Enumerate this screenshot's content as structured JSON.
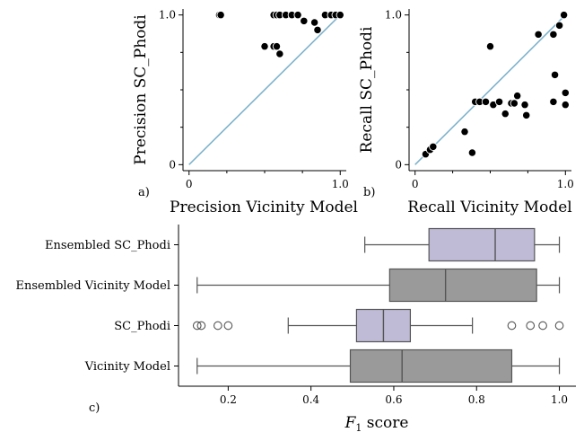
{
  "chart_data": [
    {
      "type": "scatter",
      "panel_label": "a)",
      "xlabel": "Precision Vicinity Model",
      "ylabel": "Precision SC_Phodi",
      "xlim": [
        -0.04,
        1.04
      ],
      "ylim": [
        -0.04,
        1.04
      ],
      "xticks": [
        0,
        1
      ],
      "xtick_labels": [
        "0",
        "1.0"
      ],
      "yticks": [
        0,
        1
      ],
      "ytick_labels": [
        "0",
        "1.0"
      ],
      "diagonal": true,
      "points": [
        {
          "x": 0.2,
          "y": 1.0
        },
        {
          "x": 0.21,
          "y": 1.0
        },
        {
          "x": 0.56,
          "y": 1.0
        },
        {
          "x": 0.58,
          "y": 1.0
        },
        {
          "x": 0.6,
          "y": 1.0
        },
        {
          "x": 0.64,
          "y": 1.0
        },
        {
          "x": 0.68,
          "y": 1.0
        },
        {
          "x": 0.72,
          "y": 1.0
        },
        {
          "x": 0.76,
          "y": 0.96
        },
        {
          "x": 0.83,
          "y": 0.95
        },
        {
          "x": 0.9,
          "y": 1.0
        },
        {
          "x": 0.94,
          "y": 1.0
        },
        {
          "x": 0.97,
          "y": 1.0
        },
        {
          "x": 1.0,
          "y": 1.0
        },
        {
          "x": 0.5,
          "y": 0.79
        },
        {
          "x": 0.56,
          "y": 0.79
        },
        {
          "x": 0.58,
          "y": 0.79
        },
        {
          "x": 0.6,
          "y": 0.74
        },
        {
          "x": 0.85,
          "y": 0.9
        }
      ]
    },
    {
      "type": "scatter",
      "panel_label": "b)",
      "xlabel": "Recall Vicinity Model",
      "ylabel": "Recall SC_Phodi",
      "xlim": [
        -0.04,
        1.04
      ],
      "ylim": [
        -0.04,
        1.04
      ],
      "xticks": [
        0,
        1
      ],
      "xtick_labels": [
        "0",
        "1.0"
      ],
      "yticks": [
        0,
        1
      ],
      "ytick_labels": [
        "0",
        "1.0"
      ],
      "diagonal": true,
      "points": [
        {
          "x": 0.07,
          "y": 0.07
        },
        {
          "x": 0.1,
          "y": 0.1
        },
        {
          "x": 0.12,
          "y": 0.12
        },
        {
          "x": 0.33,
          "y": 0.22
        },
        {
          "x": 0.38,
          "y": 0.08
        },
        {
          "x": 0.4,
          "y": 0.42
        },
        {
          "x": 0.43,
          "y": 0.42
        },
        {
          "x": 0.47,
          "y": 0.42
        },
        {
          "x": 0.5,
          "y": 0.79
        },
        {
          "x": 0.52,
          "y": 0.4
        },
        {
          "x": 0.56,
          "y": 0.42
        },
        {
          "x": 0.6,
          "y": 0.34
        },
        {
          "x": 0.64,
          "y": 0.41
        },
        {
          "x": 0.66,
          "y": 0.41
        },
        {
          "x": 0.68,
          "y": 0.46
        },
        {
          "x": 0.73,
          "y": 0.4
        },
        {
          "x": 0.74,
          "y": 0.33
        },
        {
          "x": 0.82,
          "y": 0.87
        },
        {
          "x": 0.92,
          "y": 0.87
        },
        {
          "x": 0.93,
          "y": 0.6
        },
        {
          "x": 0.96,
          "y": 0.93
        },
        {
          "x": 0.99,
          "y": 1.0
        },
        {
          "x": 0.92,
          "y": 0.42
        },
        {
          "x": 1.0,
          "y": 0.48
        },
        {
          "x": 1.0,
          "y": 0.4
        }
      ]
    },
    {
      "type": "box",
      "panel_label": "c)",
      "xlabel_main": "F",
      "xlabel_sub": "1",
      "xlabel_rest": " score",
      "xlim": [
        0.08,
        1.04
      ],
      "xticks": [
        0.2,
        0.4,
        0.6,
        0.8,
        1.0
      ],
      "xtick_labels": [
        "0.2",
        "0.4",
        "0.6",
        "0.8",
        "1.0"
      ],
      "categories": [
        "Ensembled SC_Phodi",
        "Ensembled Vicinity Model",
        "SC_Phodi",
        "Vicinity Model"
      ],
      "boxes": [
        {
          "name": "Ensembled SC_Phodi",
          "whislo": 0.53,
          "q1": 0.685,
          "med": 0.845,
          "q3": 0.94,
          "whishi": 1.0,
          "fliers": [],
          "color": "#bfbad6"
        },
        {
          "name": "Ensembled Vicinity Model",
          "whislo": 0.125,
          "q1": 0.59,
          "med": 0.725,
          "q3": 0.945,
          "whishi": 1.0,
          "fliers": [],
          "color": "#9a9a9a"
        },
        {
          "name": "SC_Phodi",
          "whislo": 0.345,
          "q1": 0.51,
          "med": 0.575,
          "q3": 0.64,
          "whishi": 0.79,
          "fliers": [
            0.125,
            0.135,
            0.175,
            0.2,
            0.885,
            0.93,
            0.96,
            1.0
          ],
          "color": "#bfbad6"
        },
        {
          "name": "Vicinity Model",
          "whislo": 0.125,
          "q1": 0.495,
          "med": 0.62,
          "q3": 0.885,
          "whishi": 1.0,
          "fliers": [],
          "color": "#9a9a9a"
        }
      ]
    }
  ]
}
